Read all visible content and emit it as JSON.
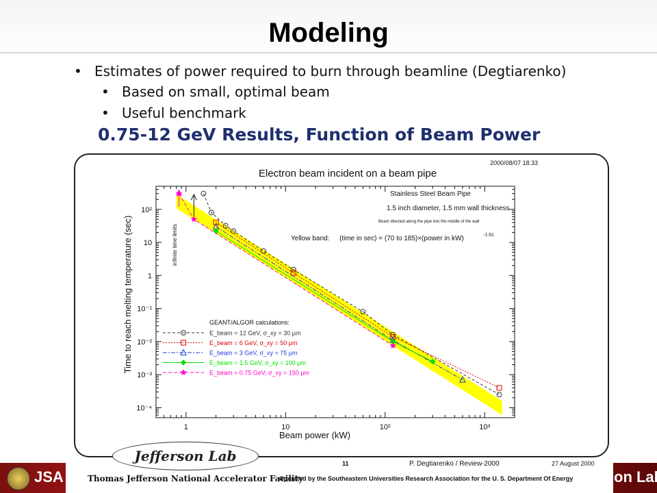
{
  "slide": {
    "title": "Modeling",
    "bullets": [
      "Estimates of power required to burn through beamline (Degtiarenko)",
      "Based on small, optimal beam",
      "Useful benchmark"
    ],
    "heading": "0.75-12 GeV Results, Function of Beam Power"
  },
  "footer": {
    "jlab_logo": "Jefferson Lab",
    "facility": "Thomas Jefferson National Accelerator Facility",
    "operated": "Operated by the Southeastern Universities Research Association for the U. S. Department Of Energy",
    "page": "11",
    "author": "P. Degtiarenko / Review-2000",
    "date": "27 August 2000",
    "jsa_logo": "JSA",
    "lab_fragment": "on Lab"
  },
  "chart_data": {
    "type": "line",
    "title": "Electron beam incident on a beam pipe",
    "timestamp": "2000/08/07   18.33",
    "xlabel": "Beam power (kW)",
    "ylabel": "Time to reach melting temperature (sec)",
    "x_scale": "log",
    "y_scale": "log",
    "xlim": [
      0.5,
      2000
    ],
    "ylim": [
      5e-05,
      500
    ],
    "x_ticks": [
      {
        "v": 1,
        "label": "1"
      },
      {
        "v": 10,
        "label": "10"
      },
      {
        "v": 100,
        "label": "10²"
      },
      {
        "v": 1000,
        "label": "10³"
      }
    ],
    "y_ticks": [
      {
        "v": 0.0001,
        "label": "10⁻⁴"
      },
      {
        "v": 0.001,
        "label": "10⁻³"
      },
      {
        "v": 0.01,
        "label": "10⁻²"
      },
      {
        "v": 0.1,
        "label": "10⁻¹"
      },
      {
        "v": 1,
        "label": "1"
      },
      {
        "v": 10,
        "label": "10"
      },
      {
        "v": 100,
        "label": "10²"
      }
    ],
    "annotations": {
      "material": "Stainless Steel Beam Pipe",
      "geometry": "1.5 inch diameter, 1.5 mm wall thickness",
      "direction": "Beam directed along the pipe into the middle of the wall",
      "band_label": "Yellow band:",
      "band_formula": "(time in sec) = (70 to 185)×(power in kW)",
      "band_exponent": "-1.91",
      "infinite": "infinite time limits"
    },
    "band": {
      "color": "#ffff00",
      "coef_low": 70,
      "coef_high": 185,
      "exponent": -1.91,
      "x_range": [
        0.8,
        1500
      ]
    },
    "legend_title": "GEANT/ALGOR calculations:",
    "legend_position": "lower-left",
    "series": [
      {
        "name": "E_beam = 12 GeV, σ_xy = 30 μm",
        "color": "#333333",
        "dash": "4,3",
        "marker": "circle",
        "points": [
          [
            1.5,
            300
          ],
          [
            1.8,
            80
          ],
          [
            2.5,
            32
          ],
          [
            3,
            22
          ],
          [
            6,
            5.5
          ],
          [
            12,
            1.5
          ],
          [
            60,
            0.08
          ],
          [
            120,
            0.016
          ],
          [
            1400,
            0.00025
          ]
        ]
      },
      {
        "name": "E_beam = 6 GeV, σ_xy = 50 μm",
        "color": "#e00000",
        "dash": "2,2",
        "marker": "square",
        "points": [
          [
            2,
            40
          ],
          [
            12,
            1.2
          ],
          [
            120,
            0.014
          ],
          [
            1400,
            0.0004
          ]
        ]
      },
      {
        "name": "E_beam = 3 GeV, σ_xy = 75 μm",
        "color": "#1e3cdc",
        "dash": "6,2,2,2",
        "marker": "triangle",
        "points": [
          [
            2,
            30
          ],
          [
            120,
            0.011
          ],
          [
            600,
            0.0007
          ]
        ]
      },
      {
        "name": "E_beam = 1.5 GeV, σ_xy = 100 μm",
        "color": "#00e000",
        "dash": "",
        "marker": "diamond",
        "points": [
          [
            2,
            22
          ],
          [
            120,
            0.01
          ],
          [
            300,
            0.0025
          ]
        ]
      },
      {
        "name": "E_beam = 0.75 GeV, σ_xy = 150 μm",
        "color": "#ff00cc",
        "dash": "5,3",
        "marker": "star",
        "points": [
          [
            0.85,
            300
          ],
          [
            1.2,
            50
          ],
          [
            120,
            0.0075
          ]
        ]
      }
    ]
  }
}
